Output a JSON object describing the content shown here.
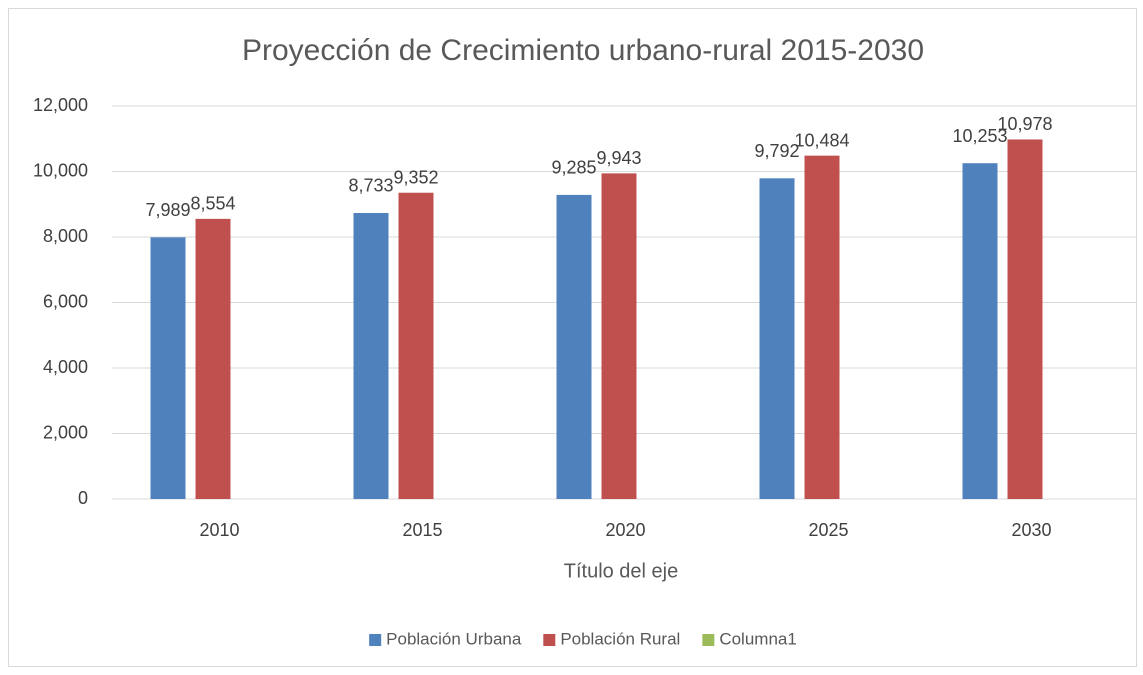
{
  "chart_data": {
    "type": "bar",
    "title": "Proyección de Crecimiento urbano-rural  2015-2030",
    "x_label": "Título del eje",
    "categories": [
      "2010",
      "2015",
      "2020",
      "2025",
      "2030"
    ],
    "series": [
      {
        "name": "Población Urbana",
        "color": "#4f81bd",
        "values": [
          7989,
          8733,
          9285,
          9792,
          10253
        ],
        "value_labels": [
          "7,989",
          "8,733",
          "9,285",
          "9,792",
          "10,253"
        ]
      },
      {
        "name": "Población Rural",
        "color": "#c0504d",
        "values": [
          8554,
          9352,
          9943,
          10484,
          10978
        ],
        "value_labels": [
          "8,554",
          "9,352",
          "9,943",
          "10,484",
          "10,978"
        ]
      },
      {
        "name": "Columna1",
        "color": "#9bbb59",
        "values": [
          null,
          null,
          null,
          null,
          null
        ]
      }
    ],
    "ylim": [
      0,
      12000
    ],
    "yticks": [
      0,
      {
        "value": 2000,
        "label": "2,000"
      },
      {
        "value": 4000,
        "label": "4,000"
      },
      {
        "value": 6000,
        "label": "6,000"
      },
      {
        "value": 8000,
        "label": "8,000"
      },
      {
        "value": 10000,
        "label": "10,000"
      },
      {
        "value": 12000,
        "label": "12,000"
      }
    ],
    "grid": true,
    "legend": "bottom"
  }
}
